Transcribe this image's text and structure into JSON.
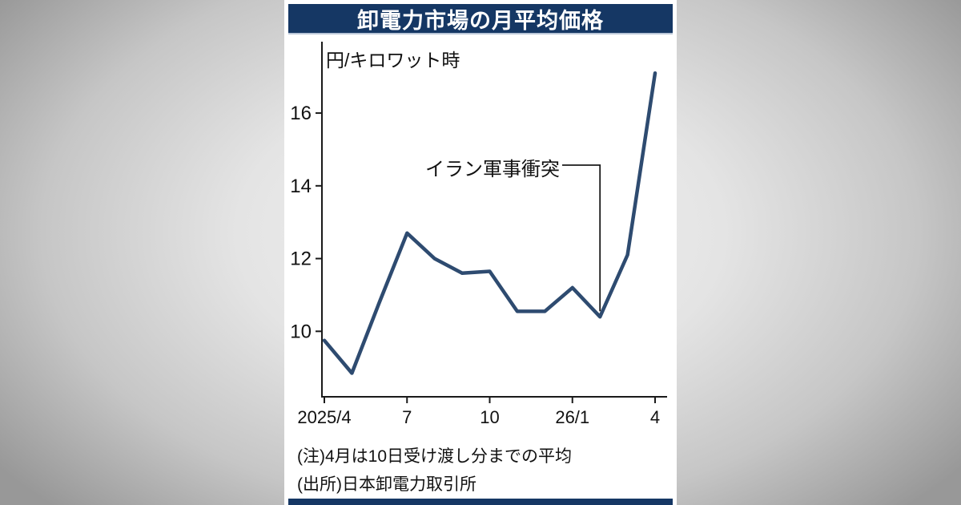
{
  "card": {
    "title": "卸電力市場の月平均価格"
  },
  "colors": {
    "title_bg": "#153764",
    "footer_bg": "#153764",
    "line": "#2e4b70",
    "axis": "#1a1a1a"
  },
  "chart_data": {
    "type": "line",
    "title": "卸電力市場の月平均価格",
    "unit_label": "円/キロワット時",
    "x": [
      "2025/4",
      "5",
      "6",
      "7",
      "8",
      "9",
      "10",
      "11",
      "12",
      "26/1",
      "2",
      "3",
      "4"
    ],
    "values": [
      9.75,
      8.85,
      10.8,
      12.7,
      12.0,
      11.6,
      11.65,
      10.55,
      10.55,
      11.2,
      10.4,
      12.1,
      17.1
    ],
    "x_tick_indices": [
      0,
      3,
      6,
      9,
      12
    ],
    "x_tick_labels": [
      "2025/4",
      "7",
      "10",
      "26/1",
      "4"
    ],
    "y_ticks": [
      10,
      12,
      14,
      16
    ],
    "ylim": [
      8.2,
      17.5
    ],
    "grid": false,
    "legend": false,
    "annotation": {
      "text": "イラン軍事衝突",
      "target_index": 10
    }
  },
  "notes": {
    "note": "(注)4月は10日受け渡し分までの平均",
    "source": "(出所)日本卸電力取引所"
  }
}
